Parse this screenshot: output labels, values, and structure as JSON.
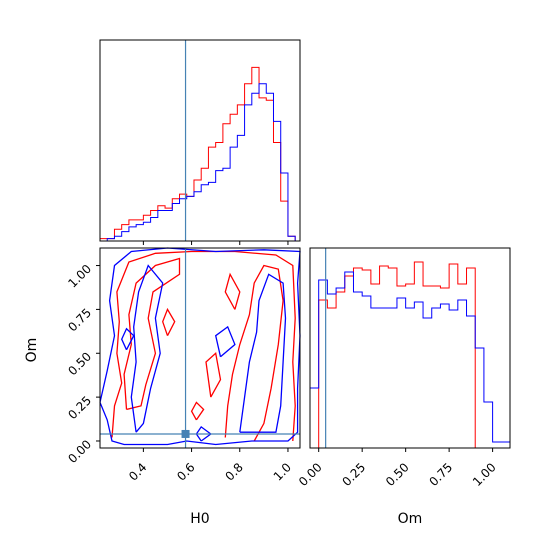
{
  "colors": {
    "series_a": "#ff0000",
    "series_b": "#0000ff",
    "truth": "#4682b4",
    "axis": "#000000",
    "background": "#ffffff"
  },
  "chart_data": [
    {
      "type": "histogram",
      "panel": "H0 marginal",
      "xlim": [
        0.22,
        1.05
      ],
      "x_ticks": [
        0.4,
        0.6,
        0.8,
        1.0
      ],
      "y_ticks_shown": false,
      "bin_edges": [
        0.22,
        0.25,
        0.28,
        0.31,
        0.34,
        0.37,
        0.4,
        0.43,
        0.46,
        0.49,
        0.52,
        0.55,
        0.58,
        0.61,
        0.64,
        0.67,
        0.7,
        0.73,
        0.76,
        0.79,
        0.82,
        0.85,
        0.88,
        0.91,
        0.94,
        0.97,
        1.0,
        1.03
      ],
      "series": [
        {
          "color": "red",
          "values": [
            1,
            1,
            5,
            7,
            9,
            9,
            11,
            13,
            15,
            14,
            18,
            20,
            19,
            26,
            31,
            40,
            42,
            50,
            54,
            58,
            67,
            74,
            61,
            60,
            42,
            17,
            2
          ]
        },
        {
          "color": "blue",
          "values": [
            0,
            1,
            2,
            4,
            6,
            7,
            8,
            10,
            13,
            13,
            16,
            18,
            19,
            21,
            24,
            25,
            30,
            31,
            40,
            45,
            58,
            63,
            67,
            63,
            51,
            29,
            2
          ]
        }
      ],
      "truth_x": 0.575
    },
    {
      "type": "contour",
      "panel": "H0 vs Om",
      "xlabel": "H0",
      "ylabel": "Om",
      "xlim": [
        0.22,
        1.05
      ],
      "ylim": [
        -0.04,
        1.1
      ],
      "x_ticks": [
        0.4,
        0.6,
        0.8,
        1.0
      ],
      "y_ticks": [
        0.0,
        0.25,
        0.5,
        0.75,
        1.0
      ],
      "series": [
        {
          "color": "red",
          "levels": 2
        },
        {
          "color": "blue",
          "levels": 2
        }
      ],
      "truth_point": [
        0.575,
        0.04
      ]
    },
    {
      "type": "histogram",
      "panel": "Om marginal",
      "xlabel": "Om",
      "xlim": [
        -0.05,
        1.1
      ],
      "x_ticks": [
        0.0,
        0.25,
        0.5,
        0.75,
        1.0
      ],
      "y_ticks_shown": false,
      "bin_edges": [
        -0.05,
        0.0,
        0.05,
        0.1,
        0.15,
        0.2,
        0.25,
        0.3,
        0.35,
        0.4,
        0.45,
        0.5,
        0.55,
        0.6,
        0.65,
        0.7,
        0.75,
        0.8,
        0.85,
        0.9,
        0.95,
        1.0,
        1.05,
        1.1
      ],
      "series": [
        {
          "color": "red",
          "values": [
            0,
            74,
            70,
            78,
            86,
            90,
            89,
            82,
            91,
            90,
            81,
            82,
            93,
            81,
            81,
            80,
            92,
            82,
            90,
            0,
            0,
            0,
            0
          ]
        },
        {
          "color": "blue",
          "values": [
            30,
            84,
            77,
            80,
            88,
            78,
            76,
            70,
            70,
            70,
            75,
            70,
            73,
            65,
            70,
            72,
            69,
            74,
            66,
            50,
            23,
            3,
            3
          ]
        }
      ],
      "truth_x": 0.04
    }
  ]
}
